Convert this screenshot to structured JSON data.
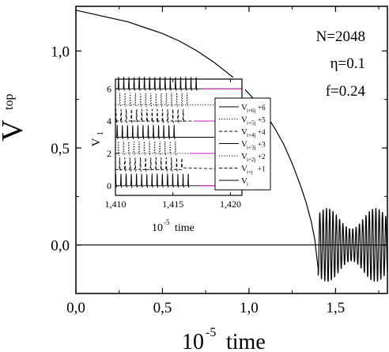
{
  "chart_data": [
    {
      "type": "line",
      "xlabel_exp": "-5",
      "xlabel_text": "time",
      "xlabel_prefix": "10",
      "ylabel_main": "V",
      "ylabel_sub": "top",
      "xlim": [
        0.0,
        1.8
      ],
      "ylim": [
        -0.25,
        1.23
      ],
      "x_ticks": [
        {
          "value": 0.0,
          "label": "0,0"
        },
        {
          "value": 0.5,
          "label": "0,5"
        },
        {
          "value": 1.0,
          "label": "1,0"
        },
        {
          "value": 1.5,
          "label": "1,5"
        }
      ],
      "y_ticks": [
        {
          "value": 0.0,
          "label": "0,0"
        },
        {
          "value": 0.5,
          "label": "0,5"
        },
        {
          "value": 1.0,
          "label": "1,0"
        }
      ],
      "annotations": [
        "N=2048",
        "η=0.1",
        "f=0.24"
      ],
      "reference_line_y": 0.0,
      "series": [
        {
          "x": [
            0.0,
            0.1,
            0.2,
            0.3,
            0.4,
            0.5,
            0.6,
            0.7,
            0.8,
            0.9,
            1.0,
            1.05,
            1.1,
            1.15,
            1.2,
            1.25,
            1.3,
            1.33,
            1.36,
            1.38,
            1.39,
            1.4
          ],
          "y": [
            1.21,
            1.19,
            1.17,
            1.15,
            1.12,
            1.09,
            1.05,
            1.0,
            0.94,
            0.87,
            0.78,
            0.73,
            0.67,
            0.6,
            0.52,
            0.42,
            0.3,
            0.22,
            0.12,
            0.03,
            -0.05,
            -0.12
          ]
        }
      ],
      "oscillation": {
        "x_start": 1.4,
        "x_end": 1.8,
        "center": 0.0,
        "amplitude_max": 0.2,
        "cycles": 21
      }
    },
    {
      "type": "line",
      "title": "",
      "xlabel_prefix": "10",
      "xlabel_exp": "-5",
      "xlabel_text": "time",
      "ylabel_main": "V",
      "ylabel_sub": "1",
      "xlim": [
        1.41,
        1.421
      ],
      "ylim": [
        -0.6,
        6.6
      ],
      "x_ticks": [
        {
          "value": 1.41,
          "label": "1,410"
        },
        {
          "value": 1.415,
          "label": "1,415"
        },
        {
          "value": 1.42,
          "label": "1,420"
        }
      ],
      "y_ticks": [
        {
          "value": 0,
          "label": "0"
        },
        {
          "value": 2,
          "label": "2"
        },
        {
          "value": 4,
          "label": "4"
        },
        {
          "value": 6,
          "label": "6"
        }
      ],
      "series": [
        {
          "name": "v_i",
          "offset": 0,
          "spike_end": 1.4164,
          "pink_from": 1.4172
        },
        {
          "name": "v_{i+j}+1",
          "offset": 1,
          "spike_end": 1.4158,
          "pink_from": null
        },
        {
          "name": "v_{i+2j}+2",
          "offset": 2,
          "spike_end": 1.4155,
          "pink_from": 1.4165
        },
        {
          "name": "v_{i+3j}+3",
          "offset": 3,
          "spike_end": 1.4152,
          "pink_from": null
        },
        {
          "name": "v_{i+4j}+4",
          "offset": 4,
          "spike_end": 1.4161,
          "pink_from": 1.4168
        },
        {
          "name": "v_{i+5j}+5",
          "offset": 5,
          "spike_end": 1.4166,
          "pink_from": null
        },
        {
          "name": "v_{i+6j}+6",
          "offset": 6,
          "spike_end": 1.4172,
          "pink_from": 1.4175
        }
      ],
      "spike_period": 0.00045,
      "spike_height": 0.75,
      "legend": [
        {
          "sub": "i+6j",
          "suffix": "+6",
          "dash": "solid"
        },
        {
          "sub": "i+5j",
          "suffix": "+5",
          "dash": "dot"
        },
        {
          "sub": "i+4j",
          "suffix": "+4",
          "dash": "dash"
        },
        {
          "sub": "i+3j",
          "suffix": "+3",
          "dash": "solid"
        },
        {
          "sub": "i+2j",
          "suffix": "+2",
          "dash": "dot"
        },
        {
          "sub": "i+j",
          "suffix": "+1",
          "dash": "dash"
        },
        {
          "sub": "i",
          "suffix": "",
          "dash": "solid"
        }
      ],
      "legend_placement": "right",
      "accent_color": "#cc33cc"
    }
  ]
}
